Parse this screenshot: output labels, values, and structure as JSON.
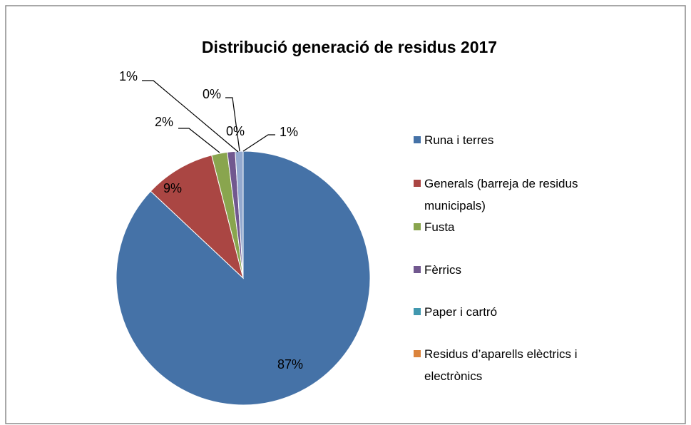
{
  "chart_data": {
    "type": "pie",
    "title": "Distribució generació de residus 2017",
    "categories": [
      "Runa i terres",
      "Generals (barreja de residus municipals)",
      "Fusta",
      "Fèrrics",
      "Paper i cartró",
      "Residus d’aparells elèctrics i electrònics",
      null
    ],
    "values": [
      87,
      9,
      2,
      1,
      0,
      0,
      1
    ],
    "value_labels": [
      "87%",
      "9%",
      "2%",
      "1%",
      "0%",
      "0%",
      "1%"
    ],
    "colors": [
      "#4572a7",
      "#aa4643",
      "#89a54e",
      "#71588f",
      "#4198af",
      "#db843d",
      "#93a9cf"
    ],
    "legend": "right"
  }
}
